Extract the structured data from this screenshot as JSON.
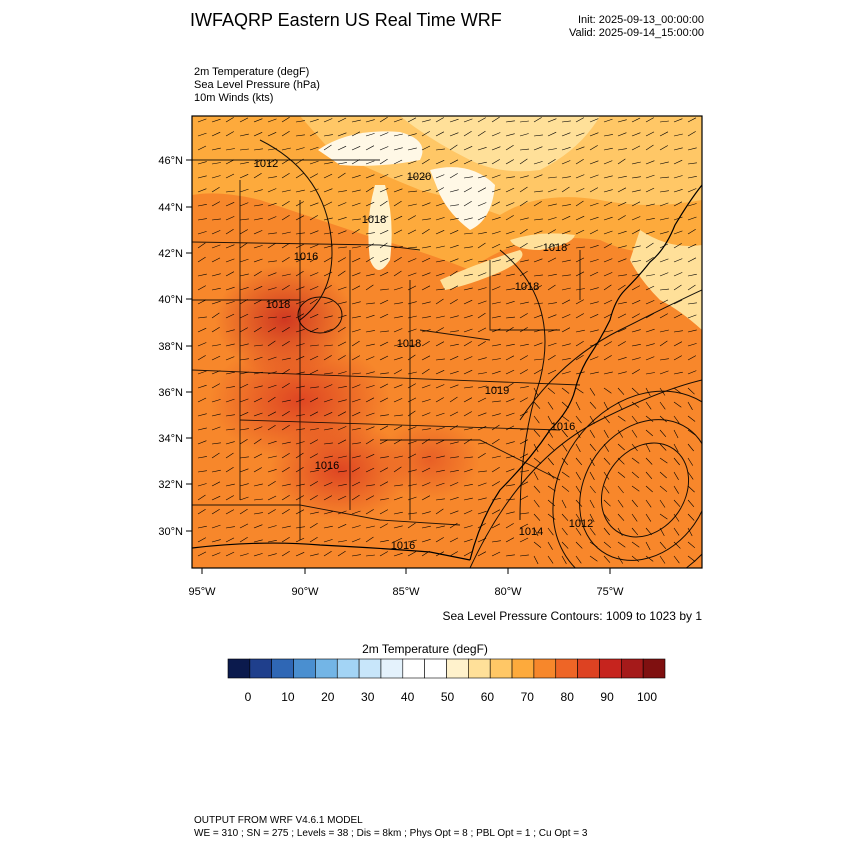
{
  "header": {
    "title": "IWFAQRP Eastern US Real Time WRF",
    "init": "Init: 2025-09-13_00:00:00",
    "valid": "Valid: 2025-09-14_15:00:00"
  },
  "fields": [
    "2m Temperature   (degF)",
    "Sea Level Pressure   (hPa)",
    "10m Winds   (kts)"
  ],
  "map": {
    "lat_labels": [
      "46°N",
      "44°N",
      "42°N",
      "40°N",
      "38°N",
      "36°N",
      "34°N",
      "32°N",
      "30°N"
    ],
    "lon_labels": [
      "95°W",
      "90°W",
      "85°W",
      "80°W",
      "75°W"
    ],
    "pressure_labels": [
      "1012",
      "1020",
      "1018",
      "1016",
      "1018",
      "1018",
      "1018",
      "1018",
      "1016",
      "1019",
      "1016",
      "1016",
      "1014",
      "1012",
      "1016"
    ],
    "contour_note": "Sea Level Pressure Contours: 1009 to 1023 by 1"
  },
  "colorbar": {
    "title": "2m Temperature  (degF)",
    "colors": [
      "#0b1a4d",
      "#1f3f8c",
      "#2f67b5",
      "#4a8fd0",
      "#73b5e6",
      "#a3d4f5",
      "#c8e6fa",
      "#e4f2fc",
      "#ffffff",
      "#ffffff",
      "#fff2cc",
      "#ffe099",
      "#ffc766",
      "#fdaa3c",
      "#f7872b",
      "#ee6526",
      "#dd4222",
      "#c6241e",
      "#a51a1a",
      "#7f1010"
    ],
    "tick_labels": [
      "0",
      "10",
      "20",
      "30",
      "40",
      "50",
      "60",
      "70",
      "80",
      "90",
      "100"
    ]
  },
  "footer": {
    "line1": "OUTPUT FROM WRF V4.6.1 MODEL",
    "line2": "WE = 310 ; SN = 275 ; Levels = 38 ; Dis = 8km ; Phys Opt = 8 ; PBL Opt = 1 ; Cu Opt = 3"
  }
}
